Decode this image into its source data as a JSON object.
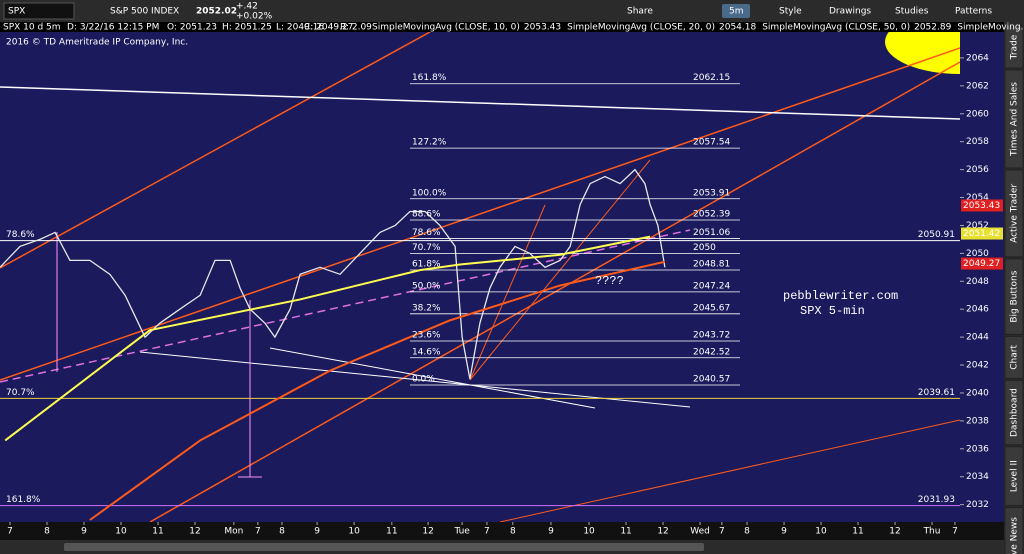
{
  "toolbar": {
    "symbol": "SPX",
    "name": "S&P 500 INDEX",
    "last": "2052.02",
    "change": "+.42",
    "change_pct": "+0.02%",
    "share": "Share",
    "interval": "5m",
    "style": "Style",
    "drawings": "Drawings",
    "studies": "Studies",
    "patterns": "Patterns"
  },
  "info": {
    "chart": "SPX 10 d 5m",
    "date": "D: 3/22/16 12:15 PM",
    "open": "O: 2051.23",
    "high": "H: 2051.25",
    "low": "L: 2049.16",
    "close": "C: 2049.27",
    "range": "R: 2.09",
    "studies": [
      {
        "name": "SimpleMovingAvg (CLOSE, 10, 0)",
        "value": "2053.43",
        "color": "#ff3030"
      },
      {
        "name": "SimpleMovingAvg (CLOSE, 20, 0)",
        "value": "2054.18",
        "color": "#ffffff"
      },
      {
        "name": "SimpleMovingAvg (CLOSE, 50, 0)",
        "value": "2052.89",
        "color": "#8080ff"
      },
      {
        "name": "SimpleMoving...",
        "value": null,
        "color": "#ffff40"
      }
    ]
  },
  "copyright": "2016 © TD Ameritrade IP Company, Inc.",
  "sidebar": [
    "Trade",
    "Times And Sales",
    "Active Trader",
    "Big Buttons",
    "Chart",
    "Dashboard",
    "Level II",
    "Live News"
  ],
  "chart_data": {
    "type": "line",
    "xlim": [
      0,
      26
    ],
    "ylim": [
      2030.9,
      2066
    ],
    "yticks": [
      2032,
      2034,
      2036,
      2038,
      2040,
      2042,
      2044,
      2046,
      2048,
      2050,
      2052,
      2054,
      2056,
      2058,
      2060,
      2062,
      2064
    ],
    "xticks": [
      {
        "value": 0.27,
        "label": "7"
      },
      {
        "value": 1.27,
        "label": "8"
      },
      {
        "value": 2.27,
        "label": "9"
      },
      {
        "value": 3.27,
        "label": "10"
      },
      {
        "value": 4.27,
        "label": "11"
      },
      {
        "value": 5.27,
        "label": "12"
      },
      {
        "value": 6.32,
        "label": "Mon"
      },
      {
        "value": 6.97,
        "label": "7"
      },
      {
        "value": 7.62,
        "label": "8"
      },
      {
        "value": 8.57,
        "label": "9"
      },
      {
        "value": 9.57,
        "label": "10"
      },
      {
        "value": 10.59,
        "label": "11"
      },
      {
        "value": 11.57,
        "label": "12"
      },
      {
        "value": 12.49,
        "label": "Tue"
      },
      {
        "value": 13.16,
        "label": "7"
      },
      {
        "value": 13.86,
        "label": "8"
      },
      {
        "value": 14.89,
        "label": "9"
      },
      {
        "value": 15.92,
        "label": "10"
      },
      {
        "value": 16.92,
        "label": "11"
      },
      {
        "value": 17.92,
        "label": "12"
      },
      {
        "value": 18.92,
        "label": "Wed"
      },
      {
        "value": 19.51,
        "label": "7"
      },
      {
        "value": 20.19,
        "label": "8"
      },
      {
        "value": 21.19,
        "label": "9"
      },
      {
        "value": 22.19,
        "label": "10"
      },
      {
        "value": 23.19,
        "label": "11"
      },
      {
        "value": 24.19,
        "label": "12"
      },
      {
        "value": 25.19,
        "label": "Thu"
      },
      {
        "value": 25.81,
        "label": "7"
      }
    ],
    "series": [
      {
        "color": "#e8e8e8",
        "x": [
          0,
          0.54,
          1.08,
          1.49,
          1.89,
          2.43,
          2.97,
          3.38,
          3.65,
          3.92,
          4.32,
          4.86,
          5.41,
          5.81,
          6.22,
          6.49,
          6.76,
          7.16,
          7.43,
          7.84,
          8.11,
          8.65,
          9.19,
          9.73,
          10.27,
          10.68,
          11.08,
          11.49,
          11.89,
          12.3,
          12.49,
          12.7,
          12.97,
          13.24,
          13.51,
          13.92,
          14.32,
          14.73,
          15.14,
          15.41,
          15.68,
          15.95,
          16.35,
          16.76,
          17.16,
          17.43,
          17.57,
          17.78,
          17.97
        ],
        "values": [
          2049,
          2050.5,
          2051,
          2051.5,
          2049.5,
          2049.5,
          2048.5,
          2047,
          2045.5,
          2044,
          2045,
          2046,
          2047,
          2049.5,
          2049.5,
          2047.5,
          2046,
          2045,
          2044,
          2046,
          2048.5,
          2049,
          2048.5,
          2050,
          2051.5,
          2052,
          2053,
          2053,
          2052,
          2050.5,
          2044,
          2041,
          2045,
          2047.5,
          2049,
          2050.5,
          2050,
          2049,
          2049.5,
          2050.5,
          2053.5,
          2055,
          2055.5,
          2055,
          2056,
          2055,
          2053.5,
          2052,
          2049
        ]
      },
      {
        "color": "#ffff50",
        "x": [
          0.14,
          4.05,
          8.11,
          11.35,
          12.43,
          15.14,
          17.57
        ],
        "values": [
          2036.6,
          2044.5,
          2046.7,
          2048.8,
          2049.2,
          2049.9,
          2051.2
        ]
      },
      {
        "color": "#ff5a1a",
        "x": [
          2.43,
          5.41,
          8.92,
          12.16,
          15.14,
          17.97
        ],
        "values": [
          2030.9,
          2036.6,
          2041.6,
          2045.2,
          2047.7,
          2049.4
        ]
      }
    ],
    "fib_x": [
      11.08,
      20
    ],
    "fib_levels": [
      {
        "label": "161.8%",
        "value": 2062.15
      },
      {
        "label": "127.2%",
        "value": 2057.54
      },
      {
        "label": "100.0%",
        "value": 2053.91
      },
      {
        "label": "88.6%",
        "value": 2052.39
      },
      {
        "label": "78.6%",
        "value": 2051.06
      },
      {
        "label": "70.7%",
        "value": 2050
      },
      {
        "label": "61.8%",
        "value": 2048.81
      },
      {
        "label": "50.0%",
        "value": 2047.24
      },
      {
        "label": "38.2%",
        "value": 2045.67
      },
      {
        "label": "23.6%",
        "value": 2043.72
      },
      {
        "label": "14.6%",
        "value": 2042.52
      },
      {
        "label": "0.0%",
        "value": 2040.57
      }
    ],
    "levels": [
      {
        "label": "78.6%",
        "value": 2050.91,
        "color": "#ffffff"
      },
      {
        "label": "70.7%",
        "value": 2039.61,
        "color": "#e8d040"
      },
      {
        "label": "161.8%",
        "value": 2031.93,
        "color": "#d070ff"
      }
    ],
    "price_tags": [
      {
        "value": 2053.43,
        "color": "#e02020"
      },
      {
        "value": 2051.42,
        "color": "#e8e030"
      },
      {
        "value": 2049.27,
        "color": "#e02020"
      }
    ],
    "annotations": [
      "pebblewriter.com",
      "SPX 5-min",
      "????"
    ]
  }
}
